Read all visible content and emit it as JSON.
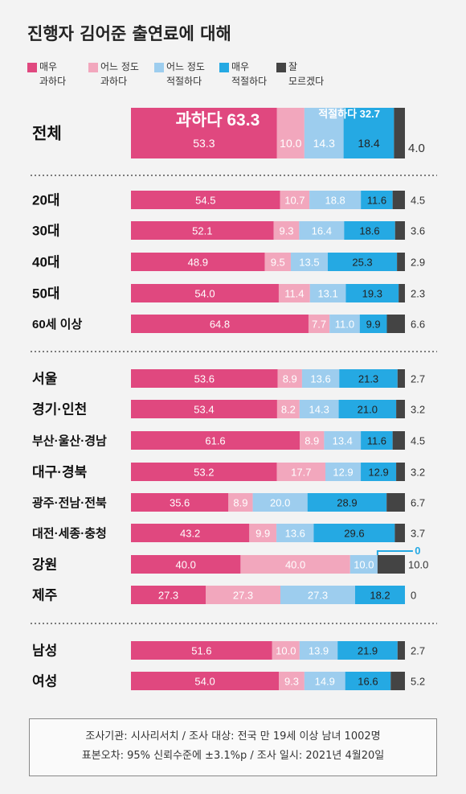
{
  "title": "진행자 김어준 출연료에 대해",
  "legend": [
    {
      "line1": "매우",
      "line2": "과하다",
      "color": "#e0487f"
    },
    {
      "line1": "어느 정도",
      "line2": "과하다",
      "color": "#f2a7bd"
    },
    {
      "line1": "어느 정도",
      "line2": "적절하다",
      "color": "#9dcdee"
    },
    {
      "line1": "매우",
      "line2": "적절하다",
      "color": "#25a9e3"
    },
    {
      "line1": "잘",
      "line2": "모르겠다",
      "color": "#444444"
    }
  ],
  "chart_data": {
    "type": "bar",
    "stacked": true,
    "orientation": "horizontal",
    "series": [
      "매우 과하다",
      "어느 정도 과하다",
      "어느 정도 적절하다",
      "매우 적절하다",
      "잘 모르겠다"
    ],
    "overall": {
      "label": "전체",
      "values": [
        53.3,
        10.0,
        14.3,
        18.4,
        4.0
      ],
      "labels": [
        "53.3",
        "10.0",
        "14.3",
        "18.4",
        "4.0"
      ],
      "sum_excessive_label": "과하다 63.3",
      "sum_appropriate_label": "적절하다 32.7"
    },
    "groups": [
      [
        {
          "label": "20대",
          "values": [
            54.5,
            10.7,
            18.8,
            11.6,
            4.5
          ],
          "labels": [
            "54.5",
            "10.7",
            "18.8",
            "11.6",
            "4.5"
          ]
        },
        {
          "label": "30대",
          "values": [
            52.1,
            9.3,
            16.4,
            18.6,
            3.6
          ],
          "labels": [
            "52.1",
            "9.3",
            "16.4",
            "18.6",
            "3.6"
          ]
        },
        {
          "label": "40대",
          "values": [
            48.9,
            9.5,
            13.5,
            25.3,
            2.9
          ],
          "labels": [
            "48.9",
            "9.5",
            "13.5",
            "25.3",
            "2.9"
          ]
        },
        {
          "label": "50대",
          "values": [
            54.0,
            11.4,
            13.1,
            19.3,
            2.3
          ],
          "labels": [
            "54.0",
            "11.4",
            "13.1",
            "19.3",
            "2.3"
          ]
        },
        {
          "label": "60세 이상",
          "values": [
            64.8,
            7.7,
            11.0,
            9.9,
            6.6
          ],
          "labels": [
            "64.8",
            "7.7",
            "11.0",
            "9.9",
            "6.6"
          ]
        }
      ],
      [
        {
          "label": "서울",
          "values": [
            53.6,
            8.9,
            13.6,
            21.3,
            2.7
          ],
          "labels": [
            "53.6",
            "8.9",
            "13.6",
            "21.3",
            "2.7"
          ]
        },
        {
          "label": "경기·인천",
          "values": [
            53.4,
            8.2,
            14.3,
            21.0,
            3.2
          ],
          "labels": [
            "53.4",
            "8.2",
            "14.3",
            "21.0",
            "3.2"
          ]
        },
        {
          "label": "부산·울산·경남",
          "values": [
            61.6,
            8.9,
            13.4,
            11.6,
            4.5
          ],
          "labels": [
            "61.6",
            "8.9",
            "13.4",
            "11.6",
            "4.5"
          ]
        },
        {
          "label": "대구·경북",
          "values": [
            53.2,
            17.7,
            12.9,
            12.9,
            3.2
          ],
          "labels": [
            "53.2",
            "17.7",
            "12.9",
            "12.9",
            "3.2"
          ]
        },
        {
          "label": "광주·전남·전북",
          "values": [
            35.6,
            8.9,
            20.0,
            28.9,
            6.7
          ],
          "labels": [
            "35.6",
            "8.9",
            "20.0",
            "28.9",
            "6.7"
          ]
        },
        {
          "label": "대전·세종·충청",
          "values": [
            43.2,
            9.9,
            13.6,
            29.6,
            3.7
          ],
          "labels": [
            "43.2",
            "9.9",
            "13.6",
            "29.6",
            "3.7"
          ]
        },
        {
          "label": "강원",
          "values": [
            40.0,
            40.0,
            10.0,
            0,
            10.0
          ],
          "labels": [
            "40.0",
            "40.0",
            "10.0",
            "0",
            "10.0"
          ]
        },
        {
          "label": "제주",
          "values": [
            27.3,
            27.3,
            27.3,
            18.2,
            0
          ],
          "labels": [
            "27.3",
            "27.3",
            "27.3",
            "18.2",
            "0"
          ]
        }
      ],
      [
        {
          "label": "남성",
          "values": [
            51.6,
            10.0,
            13.9,
            21.9,
            2.7
          ],
          "labels": [
            "51.6",
            "10.0",
            "13.9",
            "21.9",
            "2.7"
          ]
        },
        {
          "label": "여성",
          "values": [
            54.0,
            9.3,
            14.9,
            16.6,
            5.2
          ],
          "labels": [
            "54.0",
            "9.3",
            "14.9",
            "16.6",
            "5.2"
          ]
        }
      ]
    ]
  },
  "footer": {
    "line1": "조사기관: 시사리서치 / 조사 대상: 전국 만 19세 이상 남녀 1002명",
    "line2": "표본오차: 95% 신뢰수준에 ±3.1%p / 조사 일시: 2021년 4월20일"
  }
}
